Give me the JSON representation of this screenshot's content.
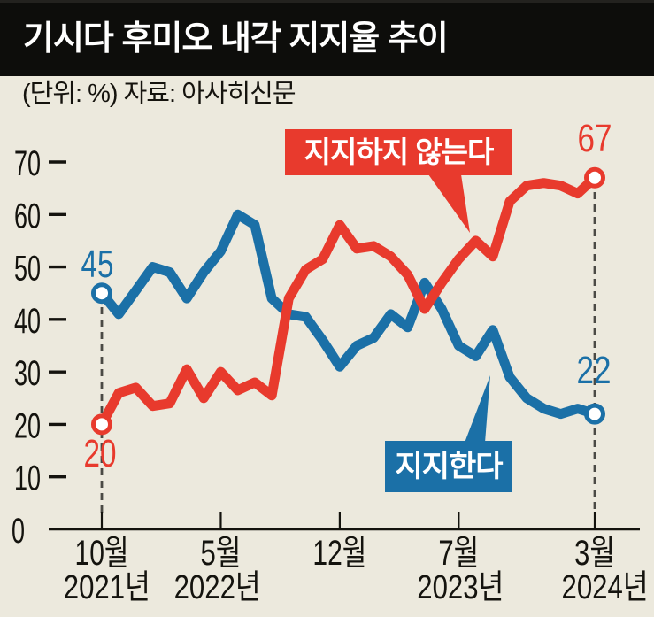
{
  "page": {
    "background": "#ece9dd"
  },
  "header": {
    "title": "기시다 후미오 내각 지지율 추이",
    "bar_color": "#0d0d0b",
    "text_color": "#ffffff"
  },
  "subheader": {
    "text": "(단위: %) 자료: 아사히신문",
    "unit_note": "(단위: %)",
    "source": "자료: 아사히신문"
  },
  "chart_data": {
    "type": "line",
    "title": "기시다 후미오 내각 지지율 추이",
    "x_range": {
      "start": "2021년 10월",
      "end": "2024년 3월",
      "interval": "monthly",
      "points": 30
    },
    "series": [
      {
        "name": "지지한다",
        "color": "#1b70a7",
        "start_value": 45,
        "end_value": 22,
        "values": [
          45,
          41,
          45.5,
          50,
          49,
          44,
          49,
          53,
          60,
          58,
          44,
          41,
          40.5,
          36,
          31,
          35,
          36.5,
          41,
          38.5,
          47,
          42,
          35,
          33,
          38,
          29,
          25,
          23,
          22,
          23,
          22
        ]
      },
      {
        "name": "지지하지 않는다",
        "color": "#e83a2d",
        "start_value": 20,
        "end_value": 67,
        "values": [
          20,
          26,
          27,
          23.5,
          24,
          30.5,
          25,
          30,
          26.5,
          28,
          25.5,
          44,
          49.5,
          51.5,
          58,
          53.5,
          54,
          52,
          48.5,
          42,
          47,
          51.5,
          55,
          52,
          62.5,
          65.5,
          66,
          65.5,
          64,
          67
        ]
      }
    ],
    "ylim": [
      0,
      70
    ],
    "y_ticks": [
      0,
      10,
      20,
      30,
      40,
      50,
      60,
      70
    ],
    "x_ticks": [
      {
        "label": "10월",
        "month_index": 0
      },
      {
        "label": "5월",
        "month_index": 7
      },
      {
        "label": "12월",
        "month_index": 14
      },
      {
        "label": "7월",
        "month_index": 21
      },
      {
        "label": "3월",
        "month_index": 29
      }
    ],
    "year_labels": [
      {
        "label": "2021년",
        "month_index": 0.3
      },
      {
        "label": "2022년",
        "month_index": 6.8
      },
      {
        "label": "2023년",
        "month_index": 21.1
      },
      {
        "label": "2024년",
        "month_index": 29.6
      }
    ],
    "grid": false,
    "legend": "callout-boxes",
    "marker_fill": "#ffffff",
    "dash_line_color": "#4b4a45"
  }
}
